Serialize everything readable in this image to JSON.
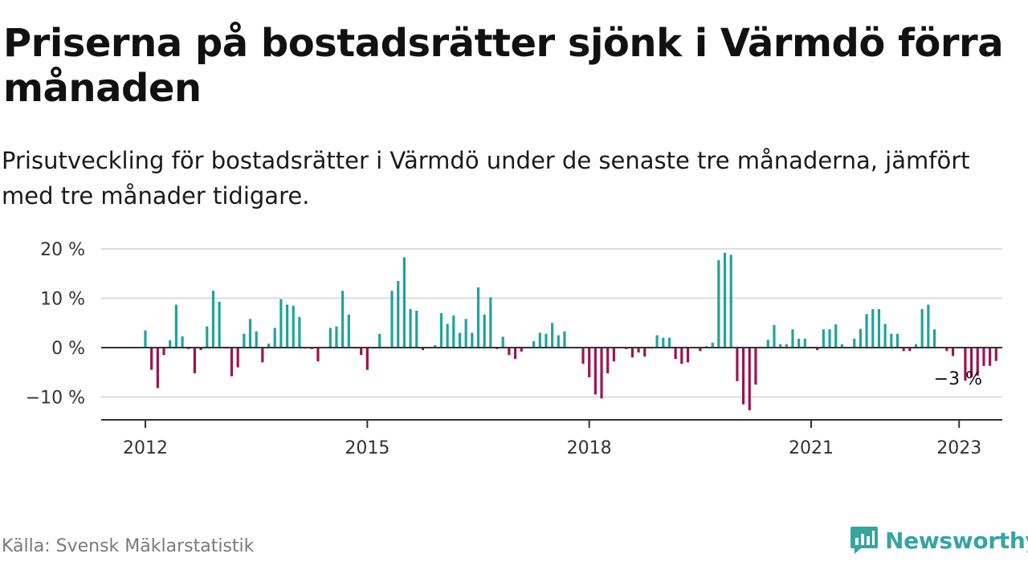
{
  "title": "Priserna på bostadsrätter sjönk i Värmdö förra månaden",
  "subtitle": "Prisutveckling för bostadsrätter i Värmdö under de senaste tre månaderna, jämfört med tre månader tidigare.",
  "source": "Källa: Svensk Mäklarstatistik",
  "brand": {
    "name": "Newsworthy",
    "icon": "newsworthy-logo-icon"
  },
  "colors": {
    "positive": "#20a39e",
    "negative": "#a0124f",
    "grid": "#dddddd",
    "axis": "#333333",
    "brand": "#35a5a0"
  },
  "chart_data": {
    "type": "bar",
    "title": "Priserna på bostadsrätter sjönk i Värmdö förra månaden",
    "subtitle": "Prisutveckling för bostadsrätter i Värmdö under de senaste tre månaderna, jämfört med tre månader tidigare.",
    "xlabel": "",
    "ylabel": "",
    "y_unit": "%",
    "ylim": [
      -15,
      22
    ],
    "y_ticks": [
      {
        "value": -10,
        "label": "−10 %"
      },
      {
        "value": 0,
        "label": "0 %"
      },
      {
        "value": 10,
        "label": "10 %"
      },
      {
        "value": 20,
        "label": "20 %"
      }
    ],
    "x_ticks": [
      {
        "date": "2012-01",
        "label": "2012"
      },
      {
        "date": "2015-01",
        "label": "2015"
      },
      {
        "date": "2018-01",
        "label": "2018"
      },
      {
        "date": "2021-01",
        "label": "2021"
      },
      {
        "date": "2023-01",
        "label": "2023"
      }
    ],
    "x_range": [
      "2011-06",
      "2023-07"
    ],
    "grid": true,
    "legend": "none",
    "annotation": {
      "date": "2023-02",
      "label": "−3 %"
    },
    "series": [
      {
        "start": "2012-01",
        "values": [
          3.5,
          -4.5,
          -8.2,
          -1.5,
          1.5,
          8.7,
          2.3,
          -0.3,
          -5.2,
          -0.5,
          4.3,
          11.5,
          9.3,
          -0.2,
          -5.8,
          -4.0,
          2.8,
          5.8,
          3.3,
          -3.0,
          0.8,
          4.0,
          9.8,
          8.7,
          8.5,
          6.2,
          -0.2,
          -0.3,
          -2.8,
          0,
          4.0,
          4.3,
          11.5,
          6.7,
          -0.2,
          -1.5,
          -4.5,
          -0.2,
          2.8,
          0,
          11.5,
          13.5,
          18.3,
          7.8,
          7.5,
          -0.5,
          0,
          0.5,
          7.0,
          4.8,
          6.5,
          3.0,
          5.8,
          3.0,
          12.2,
          6.7,
          10.2,
          -0.3,
          2.2,
          -1.5,
          -2.3,
          -0.8,
          0,
          1.3,
          3.0,
          2.8,
          5.0,
          2.5,
          3.3,
          0,
          0,
          -3.3,
          -6.0,
          -9.5,
          -10.3,
          -5.2,
          -2.8,
          0,
          -0.3,
          -2.0,
          -1.0,
          -1.8,
          -0.2,
          2.5,
          2.0,
          2.0,
          -2.3,
          -3.3,
          -3.0,
          0,
          -0.7,
          0.3,
          1.0,
          17.7,
          19.2,
          18.8,
          -6.8,
          -11.5,
          -12.7,
          -7.5,
          0,
          1.6,
          4.6,
          0.7,
          0.7,
          3.7,
          1.8,
          1.8,
          0,
          -0.5,
          3.7,
          3.7,
          4.7,
          0.7,
          0,
          1.8,
          3.8,
          6.8,
          7.8,
          7.8,
          4.8,
          2.8,
          2.8,
          -0.7,
          -0.7,
          0.7,
          7.8,
          8.7,
          3.7,
          0,
          -0.7,
          -1.7,
          0,
          -6.7,
          -6.0,
          -5.7,
          -3.7,
          -3.7,
          -2.7
        ]
      }
    ]
  }
}
